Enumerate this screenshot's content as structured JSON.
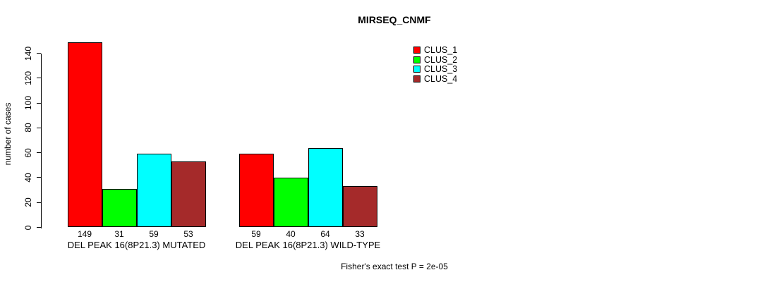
{
  "chart_data": {
    "type": "bar",
    "title": "MIRSEQ_CNMF",
    "ylabel": "number of cases",
    "xlabel": "",
    "ylim": [
      0,
      140
    ],
    "yticks": [
      0,
      20,
      40,
      60,
      80,
      100,
      120,
      140
    ],
    "ytick_labels_rotated": true,
    "grid": false,
    "legend_position": "top-right",
    "categories": [
      "DEL PEAK 16(8P21.3) MUTATED",
      "DEL PEAK 16(8P21.3) WILD-TYPE"
    ],
    "series": [
      {
        "name": "CLUS_1",
        "color": "#FF0000",
        "values": [
          149,
          59
        ]
      },
      {
        "name": "CLUS_2",
        "color": "#00FF00",
        "values": [
          31,
          40
        ]
      },
      {
        "name": "CLUS_3",
        "color": "#00FFFF",
        "values": [
          59,
          64
        ]
      },
      {
        "name": "CLUS_4",
        "color": "#A52A2A",
        "values": [
          53,
          33
        ]
      }
    ],
    "bar_value_labels_shown": true,
    "annotation": "Fisher's exact test P = 2e-05"
  }
}
